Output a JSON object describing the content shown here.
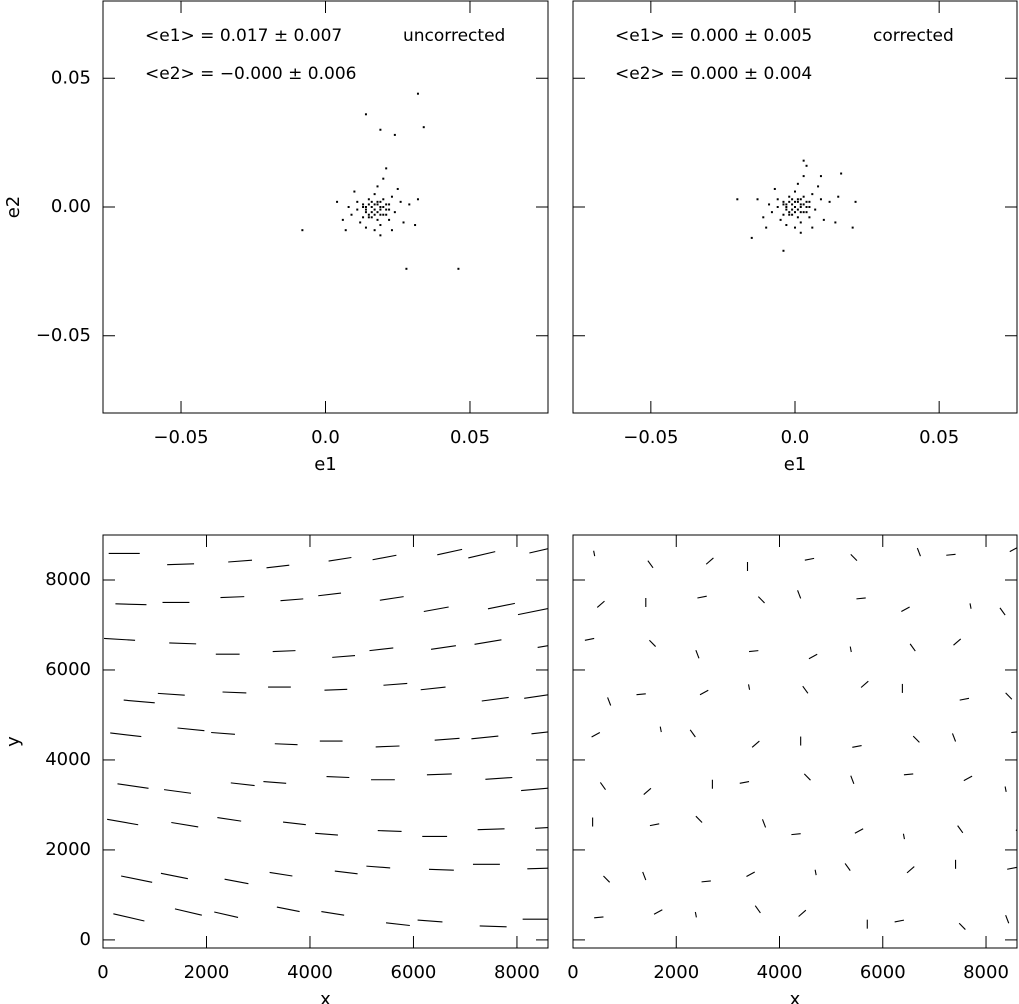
{
  "chart_data": [
    {
      "type": "scatter",
      "xlabel": "e1",
      "ylabel": "e2",
      "annotations": [
        "<e1> = 0.017 ± 0.007",
        "uncorrected",
        "<e2> = −0.000 ± 0.006"
      ],
      "xlim": [
        -0.077,
        0.077
      ],
      "ylim": [
        -0.08,
        0.08
      ],
      "xticks": [
        {
          "value": -0.05,
          "label": "−0.05"
        },
        {
          "value": 0,
          "label": "0.0"
        },
        0.05
      ],
      "yticks": [
        {
          "value": -0.05,
          "label": "−0.05"
        },
        {
          "value": 0,
          "label": "0.00"
        },
        0.05
      ],
      "color": "#000000",
      "x": [
        0.017,
        0.019,
        0.014,
        0.021,
        0.016,
        0.022,
        0.011,
        0.018,
        0.02,
        0.015,
        0.024,
        0.013,
        0.017,
        0.019,
        0.009,
        0.026,
        0.012,
        0.023,
        0.018,
        0.016,
        0.02,
        0.014,
        0.021,
        0.013,
        0.019,
        0.015,
        0.022,
        0.011,
        0.027,
        0.008,
        0.017,
        0.018,
        0.029,
        0.006,
        0.023,
        0.01,
        0.02,
        0.031,
        0.004,
        0.019,
        0.025,
        0.014,
        0.032,
        0.007,
        0.021,
        0.017,
        0.018,
        0.016,
        0.019,
        0.015,
        0.02,
        0.014,
        0.018,
        0.016,
        0.021,
        0.013,
        0.017,
        0.019,
        0.015,
        0.022,
        0.019,
        0.024,
        0.032,
        0.014,
        0.028,
        0.046,
        0.034,
        -0.008
      ],
      "y": [
        -0.001,
        0,
        -0.002,
        -0.003,
        0.002,
        0.001,
        -0.001,
        -0.005,
        0.003,
        -0.004,
        -0.002,
        0.001,
        0.005,
        -0.007,
        -0.003,
        0.002,
        -0.006,
        0.004,
        0.001,
        -0.002,
        -0.003,
        0,
        -0.001,
        -0.004,
        0.002,
        0.003,
        -0.005,
        0.002,
        -0.006,
        0,
        -0.009,
        0.008,
        0.001,
        -0.005,
        -0.009,
        0.006,
        0.011,
        -0.007,
        0.002,
        -0.011,
        0.007,
        -0.008,
        0.003,
        -0.009,
        0.015,
        0.001,
        -0.002,
        0,
        -0.001,
        -0.003,
        0,
        -0.001,
        0.002,
        -0.004,
        0.001,
        0,
        -0.003,
        -0.003,
        0.001,
        -0.001,
        0.03,
        0.028,
        0.044,
        0.036,
        -0.024,
        -0.024,
        0.031,
        -0.009
      ]
    },
    {
      "type": "scatter",
      "xlabel": "e1",
      "annotations": [
        "<e1> = 0.000 ± 0.005",
        "corrected",
        "<e2> = 0.000 ± 0.004"
      ],
      "xlim": [
        -0.077,
        0.077
      ],
      "ylim": [
        -0.08,
        0.08
      ],
      "xticks": [
        {
          "value": -0.05,
          "label": "−0.05"
        },
        {
          "value": 0,
          "label": "0.0"
        },
        0.05
      ],
      "yticks": [
        -0.05,
        0,
        0.05
      ],
      "color": "#000000",
      "x": [
        0,
        0.002,
        -0.003,
        0.004,
        -0.001,
        0.005,
        -0.006,
        0.001,
        0.003,
        -0.002,
        0.007,
        -0.004,
        0,
        0.002,
        -0.008,
        0.009,
        -0.005,
        0.006,
        0.001,
        -0.001,
        0.003,
        -0.003,
        0.004,
        -0.004,
        0.002,
        -0.002,
        0.005,
        -0.006,
        0.01,
        -0.009,
        0,
        0.001,
        0.012,
        -0.011,
        0.006,
        -0.007,
        0.003,
        0.014,
        -0.013,
        0.002,
        0.008,
        -0.003,
        0.015,
        -0.01,
        0.004,
        0,
        0.001,
        -0.001,
        0.002,
        -0.002,
        0.003,
        -0.003,
        0.001,
        -0.001,
        0.004,
        -0.004,
        0,
        0.002,
        -0.002,
        0.005,
        -0.02,
        0.02,
        0.003,
        -0.015,
        0.016,
        -0.004,
        0.021,
        0.009
      ],
      "y": [
        0,
        0.001,
        -0.001,
        -0.002,
        0.003,
        0.002,
        0,
        -0.004,
        0.004,
        -0.003,
        -0.001,
        0.002,
        0.006,
        -0.006,
        -0.002,
        0.003,
        -0.005,
        0.005,
        0.002,
        -0.001,
        -0.002,
        0.001,
        0,
        -0.003,
        0.003,
        0.004,
        -0.004,
        0.003,
        -0.005,
        0.001,
        -0.008,
        0.009,
        0.002,
        -0.004,
        -0.008,
        0.007,
        0.012,
        -0.006,
        0.003,
        -0.01,
        0.008,
        -0.007,
        0.004,
        -0.008,
        0.016,
        0.002,
        -0.001,
        0.001,
        0,
        -0.002,
        0.001,
        0,
        0.003,
        -0.003,
        0.002,
        0.001,
        -0.002,
        -0.002,
        0.002,
        0,
        0.003,
        -0.008,
        0.018,
        -0.012,
        0.013,
        -0.017,
        0.002,
        0.012
      ]
    },
    {
      "type": "quiver",
      "xlabel": "x",
      "ylabel": "y",
      "xlim": [
        0,
        8600
      ],
      "ylim": [
        -180,
        9000
      ],
      "xticks": [
        0,
        2000,
        4000,
        6000,
        8000
      ],
      "yticks": [
        0,
        2000,
        4000,
        6000,
        8000
      ],
      "color": "#000000",
      "x": [
        500,
        1650,
        2380,
        3580,
        4440,
        5700,
        6320,
        7540,
        8410,
        650,
        1380,
        2580,
        3440,
        4700,
        5320,
        6540,
        7410,
        8500,
        380,
        1580,
        2440,
        3700,
        4320,
        5540,
        6410,
        7500,
        8650,
        580,
        1440,
        2700,
        3320,
        4540,
        5410,
        6500,
        7650,
        8380,
        440,
        1700,
        2320,
        3540,
        4410,
        5500,
        6650,
        7380,
        8580,
        700,
        1320,
        2540,
        3410,
        4500,
        5650,
        6380,
        7580,
        8440,
        320,
        1540,
        2410,
        3500,
        4650,
        5380,
        6580,
        7440,
        8700,
        540,
        1410,
        2500,
        3650,
        4380,
        5580,
        6440,
        7700,
        8320,
        410,
        1500,
        2650,
        3380,
        4580,
        5440,
        6700,
        7320,
        8540
      ],
      "y": [
        500,
        620,
        560,
        680,
        590,
        350,
        420,
        300,
        460,
        1350,
        1420,
        1300,
        1460,
        1500,
        1620,
        1560,
        1680,
        1590,
        2620,
        2560,
        2680,
        2590,
        2350,
        2420,
        2300,
        2460,
        2500,
        3420,
        3300,
        3460,
        3500,
        3620,
        3560,
        3680,
        3590,
        3350,
        4560,
        4680,
        4590,
        4350,
        4420,
        4300,
        4460,
        4500,
        4620,
        5300,
        5460,
        5500,
        5620,
        5560,
        5680,
        5590,
        5350,
        5420,
        6680,
        6590,
        6350,
        6420,
        6300,
        6460,
        6500,
        6620,
        6560,
        7460,
        7500,
        7620,
        7560,
        7680,
        7590,
        7350,
        7420,
        7300,
        8590,
        8350,
        8420,
        8300,
        8460,
        8500,
        8620,
        8560,
        8680
      ],
      "u": [
        300,
        260,
        230,
        220,
        220,
        230,
        240,
        260,
        300,
        300,
        260,
        230,
        220,
        220,
        230,
        240,
        260,
        300,
        300,
        260,
        230,
        220,
        220,
        230,
        240,
        260,
        300,
        300,
        260,
        230,
        220,
        220,
        230,
        240,
        260,
        300,
        300,
        260,
        230,
        220,
        220,
        230,
        240,
        260,
        300,
        300,
        260,
        230,
        220,
        220,
        230,
        240,
        260,
        300,
        300,
        260,
        230,
        220,
        220,
        230,
        240,
        260,
        300,
        300,
        260,
        230,
        220,
        220,
        230,
        240,
        260,
        300,
        300,
        260,
        230,
        220,
        220,
        230,
        240,
        260,
        300
      ],
      "v": [
        -80,
        -70,
        -60,
        -50,
        -40,
        -30,
        -20,
        -10,
        0,
        -70,
        -60,
        -50,
        -40,
        -30,
        -20,
        -10,
        0,
        10,
        -60,
        -50,
        -40,
        -30,
        -20,
        -10,
        0,
        10,
        20,
        -50,
        -40,
        -30,
        -20,
        -10,
        0,
        10,
        20,
        30,
        -40,
        -30,
        -20,
        -10,
        0,
        10,
        20,
        30,
        40,
        -30,
        -20,
        -10,
        0,
        10,
        20,
        30,
        40,
        50,
        -20,
        -10,
        0,
        10,
        20,
        30,
        40,
        50,
        60,
        -10,
        0,
        10,
        20,
        30,
        40,
        50,
        60,
        70,
        0,
        10,
        20,
        30,
        40,
        50,
        60,
        70,
        80
      ]
    },
    {
      "type": "quiver",
      "xlabel": "x",
      "xlim": [
        0,
        8600
      ],
      "ylim": [
        -180,
        9000
      ],
      "xticks": [
        0,
        2000,
        4000,
        6000,
        8000
      ],
      "yticks": [
        0,
        2000,
        4000,
        6000,
        8000
      ],
      "color": "#000000",
      "x": [
        500,
        1650,
        2380,
        3580,
        4440,
        5700,
        6320,
        7540,
        8410,
        650,
        1380,
        2580,
        3440,
        4700,
        5320,
        6540,
        7410,
        8500,
        380,
        1580,
        2440,
        3700,
        4320,
        5540,
        6410,
        7500,
        8650,
        580,
        1440,
        2700,
        3320,
        4540,
        5410,
        6500,
        7650,
        8380,
        440,
        1700,
        2320,
        3540,
        4410,
        5500,
        6650,
        7380,
        8580,
        700,
        1320,
        2540,
        3410,
        4500,
        5650,
        6380,
        7580,
        8440,
        320,
        1540,
        2410,
        3500,
        4650,
        5380,
        6580,
        7440,
        8700,
        540,
        1410,
        2500,
        3650,
        4380,
        5580,
        6440,
        7700,
        8320,
        410,
        1500,
        2650,
        3380,
        4580,
        5440,
        6700,
        7320,
        8540
      ],
      "y": [
        500,
        620,
        560,
        680,
        590,
        350,
        420,
        300,
        460,
        1350,
        1420,
        1300,
        1460,
        1500,
        1620,
        1560,
        1680,
        1590,
        2620,
        2560,
        2680,
        2590,
        2350,
        2420,
        2300,
        2460,
        2500,
        3420,
        3300,
        3460,
        3500,
        3620,
        3560,
        3680,
        3590,
        3350,
        4560,
        4680,
        4590,
        4350,
        4420,
        4300,
        4460,
        4500,
        4620,
        5300,
        5460,
        5500,
        5620,
        5560,
        5680,
        5590,
        5350,
        5420,
        6680,
        6590,
        6350,
        6420,
        6300,
        6460,
        6500,
        6620,
        6560,
        7460,
        7500,
        7620,
        7560,
        7680,
        7590,
        7350,
        7420,
        7300,
        8590,
        8350,
        8420,
        8300,
        8460,
        8500,
        8620,
        8560,
        8680
      ],
      "u": [
        90,
        80,
        10,
        -50,
        70,
        0,
        -90,
        60,
        30,
        60,
        30,
        90,
        80,
        10,
        -50,
        70,
        0,
        -90,
        0,
        -90,
        60,
        30,
        90,
        80,
        10,
        -50,
        70,
        -50,
        70,
        0,
        -90,
        60,
        30,
        90,
        80,
        10,
        80,
        10,
        -50,
        70,
        0,
        -90,
        60,
        30,
        90,
        30,
        90,
        80,
        10,
        -50,
        70,
        0,
        -90,
        60,
        -90,
        60,
        30,
        90,
        80,
        10,
        -50,
        70,
        0,
        70,
        0,
        -90,
        60,
        30,
        90,
        80,
        10,
        -50,
        10,
        -50,
        70,
        0,
        -90,
        60,
        30,
        90,
        80
      ],
      "v": [
        10,
        50,
        -60,
        80,
        70,
        100,
        -20,
        -70,
        -90,
        -70,
        -90,
        10,
        50,
        -60,
        80,
        70,
        100,
        -20,
        100,
        -20,
        -70,
        -90,
        10,
        50,
        -60,
        80,
        70,
        80,
        70,
        100,
        -20,
        -70,
        -90,
        10,
        50,
        -60,
        50,
        -60,
        80,
        70,
        100,
        -20,
        -70,
        -90,
        10,
        -90,
        10,
        50,
        -60,
        80,
        70,
        100,
        -20,
        -70,
        -20,
        -70,
        -90,
        10,
        50,
        -60,
        80,
        70,
        100,
        70,
        100,
        -20,
        -70,
        -90,
        10,
        50,
        -60,
        80,
        -60,
        80,
        70,
        100,
        -20,
        -70,
        -90,
        10,
        50
      ]
    }
  ]
}
